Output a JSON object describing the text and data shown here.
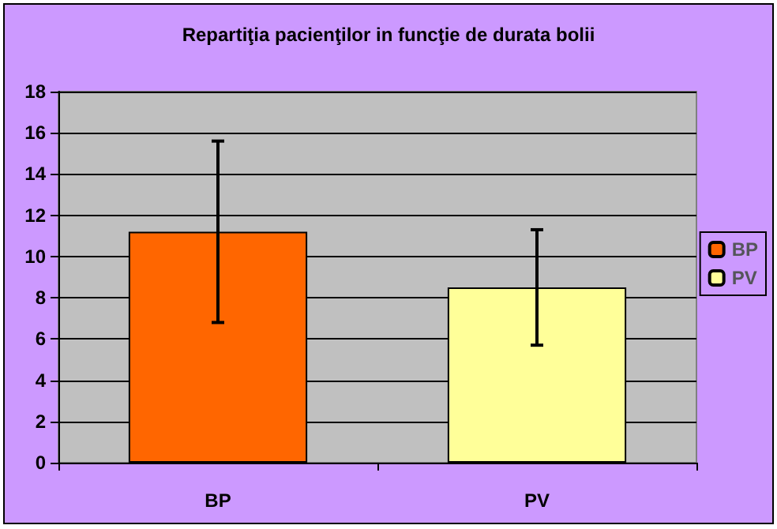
{
  "chart_data": {
    "type": "bar",
    "title": "Repartiţia pacienţilor in funcţie de durata bolii",
    "categories": [
      "BP",
      "PV"
    ],
    "series": [
      {
        "name": "BP",
        "color": "#ff6600",
        "values": [
          11.2,
          null
        ],
        "errors": [
          4.4,
          null
        ]
      },
      {
        "name": "PV",
        "color": "#ffff99",
        "values": [
          null,
          8.5
        ],
        "errors": [
          null,
          2.8
        ]
      }
    ],
    "ylim": [
      0,
      18
    ],
    "yticks": [
      0,
      2,
      4,
      6,
      8,
      10,
      12,
      14,
      16,
      18
    ],
    "grid": "y",
    "legend": "right"
  }
}
